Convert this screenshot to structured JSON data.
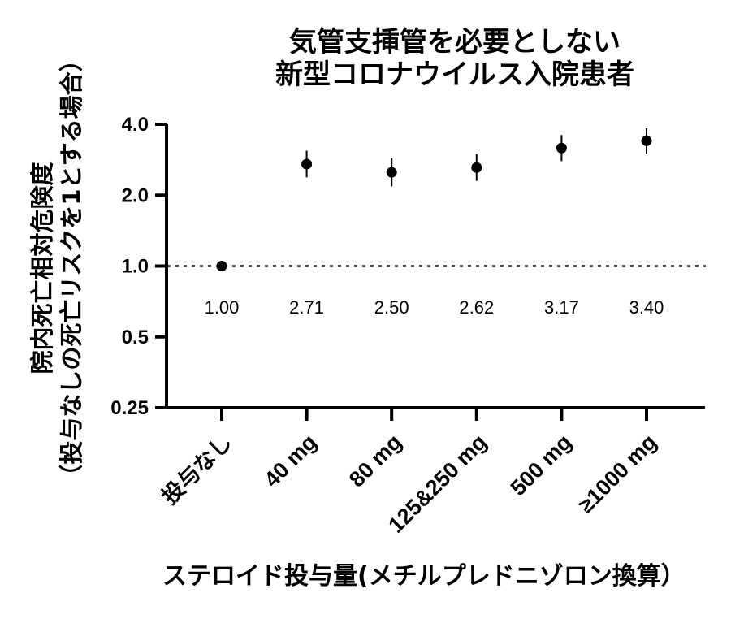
{
  "chart_data": {
    "type": "scatter",
    "title_lines": [
      "気管支挿管を必要としない",
      "新型コロナウイルス入院患者"
    ],
    "ylabel_lines": [
      "院内死亡相対危険度",
      "（投与なしの死亡リスクを1とする場合）"
    ],
    "xlabel": "ステロイド投与量(メチルプレドニゾロン換算）",
    "y_scale": "log2",
    "ylim": [
      0.25,
      4.0
    ],
    "yticks": [
      0.25,
      0.5,
      1.0,
      2.0,
      4.0
    ],
    "ytick_labels": [
      "0.25",
      "0.5",
      "1.0",
      "2.0",
      "4.0"
    ],
    "reference_line": 1.0,
    "categories": [
      "投与なし",
      "40 mg",
      "80 mg",
      "125&250 mg",
      "500 mg",
      "≥1000 mg"
    ],
    "values": [
      1.0,
      2.71,
      2.5,
      2.62,
      3.17,
      3.4
    ],
    "error_low": [
      1.0,
      2.38,
      2.18,
      2.3,
      2.79,
      3.0
    ],
    "error_high": [
      1.0,
      3.09,
      2.87,
      2.99,
      3.6,
      3.85
    ],
    "data_labels": [
      "1.00",
      "2.71",
      "2.50",
      "2.62",
      "3.17",
      "3.40"
    ],
    "grid": false,
    "legend": "none"
  }
}
